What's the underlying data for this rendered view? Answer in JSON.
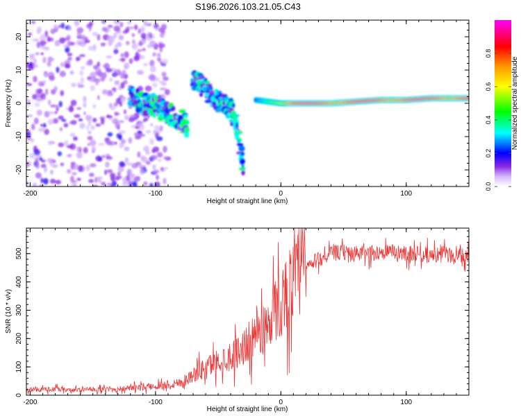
{
  "title": "S196.2026.103.21.05.C43",
  "chart_data": [
    {
      "type": "heatmap",
      "xlabel": "Height of straight line (km)",
      "ylabel": "Frequency (Hz)",
      "xlim": [
        -203,
        150
      ],
      "ylim": [
        -25,
        25
      ],
      "xticks": [
        -200,
        -100,
        0,
        100
      ],
      "yticks": [
        -20,
        -10,
        0,
        10,
        20
      ],
      "colorbar": {
        "label": "Normalized spectral amplitude",
        "range": [
          0.0,
          1.0
        ],
        "ticks": [
          0.0,
          0.2,
          0.4,
          0.6,
          0.8
        ],
        "colors": [
          "#ffffff",
          "#7f00ff",
          "#0000ff",
          "#00ffff",
          "#00ff00",
          "#ffff00",
          "#ff8000",
          "#ff0000",
          "#ff00ff"
        ]
      },
      "features": [
        {
          "name": "diffuse-noise",
          "x_range": [
            -203,
            -120
          ],
          "freq_range": [
            -25,
            25
          ],
          "amplitude": 0.05
        },
        {
          "name": "slanted-track-1",
          "x": [
            -120,
            -110,
            -100,
            -90,
            -80,
            -75
          ],
          "freq": [
            2,
            0,
            -1,
            -3,
            -5,
            -7
          ],
          "amplitude": 0.35
        },
        {
          "name": "slanted-track-2",
          "x": [
            -70,
            -60,
            -50,
            -40,
            -35,
            -30
          ],
          "freq": [
            8,
            4,
            1,
            -2,
            -6,
            -20
          ],
          "amplitude": 0.3
        },
        {
          "name": "carrier-line",
          "x": [
            -20,
            0,
            20,
            40,
            60,
            80,
            100,
            120,
            150
          ],
          "freq": [
            1,
            0,
            0,
            0,
            0.5,
            1,
            1,
            1.5,
            1.5
          ],
          "amplitude": 0.95
        }
      ]
    },
    {
      "type": "line",
      "xlabel": "Height of straight line (km)",
      "ylabel": "SNR (10 * v/v)",
      "xlim": [
        -203,
        150
      ],
      "ylim": [
        0,
        590
      ],
      "xticks": [
        -200,
        -100,
        0,
        100
      ],
      "yticks": [
        0,
        100,
        200,
        300,
        400,
        500
      ],
      "color": "#ee3333",
      "x": [
        -203,
        -190,
        -180,
        -170,
        -160,
        -150,
        -140,
        -130,
        -120,
        -110,
        -100,
        -90,
        -80,
        -70,
        -60,
        -50,
        -40,
        -30,
        -20,
        -10,
        0,
        10,
        20,
        30,
        40,
        50,
        60,
        70,
        80,
        90,
        100,
        110,
        120,
        130,
        140,
        150
      ],
      "y": [
        20,
        20,
        22,
        18,
        20,
        20,
        20,
        22,
        25,
        28,
        32,
        38,
        45,
        70,
        100,
        120,
        140,
        170,
        210,
        260,
        330,
        400,
        450,
        480,
        500,
        505,
        500,
        500,
        505,
        505,
        500,
        500,
        495,
        500,
        490,
        490
      ]
    }
  ]
}
